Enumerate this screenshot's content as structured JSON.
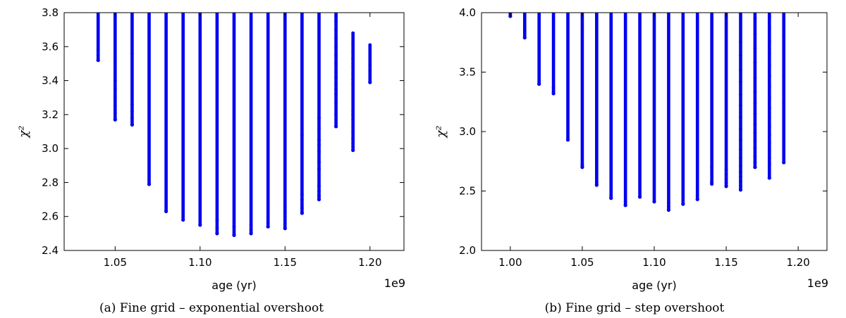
{
  "chart_data": [
    {
      "type": "scatter",
      "panel": "a",
      "caption": "(a) Fine grid – exponential overshoot",
      "xlabel": "age (yr)",
      "ylabel": "χ²",
      "x_offset_text": "1e9",
      "xlim": [
        1.02,
        1.22
      ],
      "ylim": [
        2.4,
        3.8
      ],
      "xticks": [
        "1.05",
        "1.10",
        "1.15",
        "1.20"
      ],
      "yticks": [
        "2.4",
        "2.6",
        "2.8",
        "3.0",
        "3.2",
        "3.4",
        "3.6",
        "3.8"
      ],
      "color": "#0000ee",
      "columns": [
        {
          "x": 1.04,
          "ymin": 3.52,
          "ymax": 3.8
        },
        {
          "x": 1.05,
          "ymin": 3.17,
          "ymax": 3.8
        },
        {
          "x": 1.06,
          "ymin": 3.14,
          "ymax": 3.8
        },
        {
          "x": 1.07,
          "ymin": 2.79,
          "ymax": 3.8
        },
        {
          "x": 1.08,
          "ymin": 2.63,
          "ymax": 3.8
        },
        {
          "x": 1.09,
          "ymin": 2.58,
          "ymax": 3.8
        },
        {
          "x": 1.1,
          "ymin": 2.55,
          "ymax": 3.8
        },
        {
          "x": 1.11,
          "ymin": 2.5,
          "ymax": 3.8
        },
        {
          "x": 1.12,
          "ymin": 2.49,
          "ymax": 3.8
        },
        {
          "x": 1.13,
          "ymin": 2.5,
          "ymax": 3.8
        },
        {
          "x": 1.14,
          "ymin": 2.54,
          "ymax": 3.8
        },
        {
          "x": 1.15,
          "ymin": 2.53,
          "ymax": 3.8
        },
        {
          "x": 1.16,
          "ymin": 2.62,
          "ymax": 3.8
        },
        {
          "x": 1.17,
          "ymin": 2.7,
          "ymax": 3.8
        },
        {
          "x": 1.18,
          "ymin": 3.13,
          "ymax": 3.8
        },
        {
          "x": 1.19,
          "ymin": 2.99,
          "ymax": 3.68
        },
        {
          "x": 1.2,
          "ymin": 3.39,
          "ymax": 3.61
        }
      ],
      "scatter_points": [
        {
          "x": 1.04,
          "y": 3.52
        },
        {
          "x": 1.04,
          "y": 3.55
        },
        {
          "x": 1.04,
          "y": 3.58
        },
        {
          "x": 1.05,
          "y": 3.17
        },
        {
          "x": 1.05,
          "y": 3.21
        },
        {
          "x": 1.05,
          "y": 3.25
        },
        {
          "x": 1.05,
          "y": 3.3
        },
        {
          "x": 1.05,
          "y": 3.35
        },
        {
          "x": 1.05,
          "y": 3.4
        },
        {
          "x": 1.05,
          "y": 3.45
        },
        {
          "x": 1.05,
          "y": 3.51
        },
        {
          "x": 1.06,
          "y": 3.14
        },
        {
          "x": 1.06,
          "y": 3.18
        },
        {
          "x": 1.06,
          "y": 3.22
        },
        {
          "x": 1.06,
          "y": 3.26
        },
        {
          "x": 1.06,
          "y": 3.56
        },
        {
          "x": 1.11,
          "y": 2.5
        },
        {
          "x": 1.11,
          "y": 2.53
        },
        {
          "x": 1.11,
          "y": 2.58
        },
        {
          "x": 1.12,
          "y": 2.49
        },
        {
          "x": 1.12,
          "y": 2.54
        },
        {
          "x": 1.13,
          "y": 2.5
        },
        {
          "x": 1.13,
          "y": 2.52
        },
        {
          "x": 1.13,
          "y": 2.55
        },
        {
          "x": 1.14,
          "y": 2.54
        },
        {
          "x": 1.14,
          "y": 2.56
        },
        {
          "x": 1.15,
          "y": 2.53
        },
        {
          "x": 1.15,
          "y": 2.56
        },
        {
          "x": 1.15,
          "y": 2.6
        },
        {
          "x": 1.15,
          "y": 2.63
        },
        {
          "x": 1.15,
          "y": 2.66
        },
        {
          "x": 1.16,
          "y": 2.62
        },
        {
          "x": 1.16,
          "y": 2.65
        },
        {
          "x": 1.16,
          "y": 2.7
        },
        {
          "x": 1.16,
          "y": 2.73
        },
        {
          "x": 1.16,
          "y": 3.08
        },
        {
          "x": 1.17,
          "y": 2.7
        },
        {
          "x": 1.17,
          "y": 2.72
        },
        {
          "x": 1.17,
          "y": 2.75
        },
        {
          "x": 1.17,
          "y": 2.78
        },
        {
          "x": 1.17,
          "y": 2.88
        },
        {
          "x": 1.17,
          "y": 2.92
        },
        {
          "x": 1.17,
          "y": 2.98
        },
        {
          "x": 1.17,
          "y": 3.02
        },
        {
          "x": 1.17,
          "y": 3.05
        },
        {
          "x": 1.17,
          "y": 3.12
        },
        {
          "x": 1.17,
          "y": 3.18
        },
        {
          "x": 1.18,
          "y": 3.13
        },
        {
          "x": 1.18,
          "y": 3.2
        },
        {
          "x": 1.18,
          "y": 3.27
        },
        {
          "x": 1.18,
          "y": 3.32
        },
        {
          "x": 1.18,
          "y": 3.35
        },
        {
          "x": 1.18,
          "y": 3.38
        },
        {
          "x": 1.18,
          "y": 3.42
        },
        {
          "x": 1.18,
          "y": 3.45
        },
        {
          "x": 1.18,
          "y": 3.5
        },
        {
          "x": 1.18,
          "y": 3.55
        },
        {
          "x": 1.18,
          "y": 3.6
        },
        {
          "x": 1.18,
          "y": 3.65
        },
        {
          "x": 1.18,
          "y": 3.7
        },
        {
          "x": 1.18,
          "y": 3.75
        },
        {
          "x": 1.18,
          "y": 3.78
        },
        {
          "x": 1.19,
          "y": 2.99
        },
        {
          "x": 1.19,
          "y": 3.01
        },
        {
          "x": 1.19,
          "y": 3.03
        },
        {
          "x": 1.19,
          "y": 3.06
        },
        {
          "x": 1.19,
          "y": 3.1
        },
        {
          "x": 1.19,
          "y": 3.13
        },
        {
          "x": 1.19,
          "y": 3.17
        },
        {
          "x": 1.19,
          "y": 3.2
        },
        {
          "x": 1.19,
          "y": 3.22
        },
        {
          "x": 1.19,
          "y": 3.38
        },
        {
          "x": 1.19,
          "y": 3.41
        },
        {
          "x": 1.19,
          "y": 3.44
        },
        {
          "x": 1.19,
          "y": 3.48
        },
        {
          "x": 1.19,
          "y": 3.5
        },
        {
          "x": 1.19,
          "y": 3.53
        },
        {
          "x": 1.19,
          "y": 3.57
        },
        {
          "x": 1.19,
          "y": 3.62
        },
        {
          "x": 1.19,
          "y": 3.68
        },
        {
          "x": 1.2,
          "y": 3.39
        },
        {
          "x": 1.2,
          "y": 3.46
        },
        {
          "x": 1.2,
          "y": 3.49
        },
        {
          "x": 1.2,
          "y": 3.61
        }
      ]
    },
    {
      "type": "scatter",
      "panel": "b",
      "caption": "(b) Fine grid – step overshoot",
      "xlabel": "age (yr)",
      "ylabel": "χ²",
      "x_offset_text": "1e9",
      "xlim": [
        0.98,
        1.22
      ],
      "ylim": [
        2.0,
        4.0
      ],
      "xticks": [
        "1.00",
        "1.05",
        "1.10",
        "1.15",
        "1.20"
      ],
      "yticks": [
        "2.0",
        "2.5",
        "3.0",
        "3.5",
        "4.0"
      ],
      "color": "#0000ee",
      "columns": [
        {
          "x": 1.0,
          "ymin": 3.97,
          "ymax": 4.0
        },
        {
          "x": 1.01,
          "ymin": 3.79,
          "ymax": 4.0
        },
        {
          "x": 1.02,
          "ymin": 3.4,
          "ymax": 4.0
        },
        {
          "x": 1.03,
          "ymin": 3.32,
          "ymax": 4.0
        },
        {
          "x": 1.04,
          "ymin": 2.93,
          "ymax": 4.0
        },
        {
          "x": 1.05,
          "ymin": 2.7,
          "ymax": 4.0
        },
        {
          "x": 1.06,
          "ymin": 2.55,
          "ymax": 4.0
        },
        {
          "x": 1.07,
          "ymin": 2.44,
          "ymax": 4.0
        },
        {
          "x": 1.08,
          "ymin": 2.38,
          "ymax": 4.0
        },
        {
          "x": 1.09,
          "ymin": 2.45,
          "ymax": 4.0
        },
        {
          "x": 1.1,
          "ymin": 2.41,
          "ymax": 4.0
        },
        {
          "x": 1.11,
          "ymin": 2.34,
          "ymax": 4.0
        },
        {
          "x": 1.12,
          "ymin": 2.39,
          "ymax": 4.0
        },
        {
          "x": 1.13,
          "ymin": 2.43,
          "ymax": 4.0
        },
        {
          "x": 1.14,
          "ymin": 2.56,
          "ymax": 4.0
        },
        {
          "x": 1.15,
          "ymin": 2.54,
          "ymax": 4.0
        },
        {
          "x": 1.16,
          "ymin": 2.51,
          "ymax": 4.0
        },
        {
          "x": 1.17,
          "ymin": 2.7,
          "ymax": 4.0
        },
        {
          "x": 1.18,
          "ymin": 2.61,
          "ymax": 4.0
        },
        {
          "x": 1.19,
          "ymin": 2.74,
          "ymax": 4.0
        }
      ],
      "scatter_points": [
        {
          "x": 1.0,
          "y": 3.97
        },
        {
          "x": 1.0,
          "y": 3.99
        },
        {
          "x": 1.01,
          "y": 3.79
        },
        {
          "x": 1.01,
          "y": 3.85
        },
        {
          "x": 1.02,
          "y": 3.4
        },
        {
          "x": 1.02,
          "y": 3.42
        },
        {
          "x": 1.03,
          "y": 3.32
        },
        {
          "x": 1.03,
          "y": 3.34
        },
        {
          "x": 1.03,
          "y": 3.37
        },
        {
          "x": 1.05,
          "y": 2.7
        },
        {
          "x": 1.05,
          "y": 2.72
        },
        {
          "x": 1.06,
          "y": 2.55
        },
        {
          "x": 1.06,
          "y": 2.57
        },
        {
          "x": 1.07,
          "y": 2.44
        },
        {
          "x": 1.07,
          "y": 2.46
        },
        {
          "x": 1.08,
          "y": 2.38
        },
        {
          "x": 1.08,
          "y": 2.41
        },
        {
          "x": 1.11,
          "y": 2.34
        },
        {
          "x": 1.11,
          "y": 2.37
        },
        {
          "x": 1.11,
          "y": 2.4
        },
        {
          "x": 1.12,
          "y": 2.39
        },
        {
          "x": 1.13,
          "y": 2.43
        },
        {
          "x": 1.13,
          "y": 2.46
        },
        {
          "x": 1.13,
          "y": 2.52
        },
        {
          "x": 1.14,
          "y": 2.56
        },
        {
          "x": 1.14,
          "y": 2.58
        },
        {
          "x": 1.14,
          "y": 2.7
        },
        {
          "x": 1.15,
          "y": 2.54
        },
        {
          "x": 1.15,
          "y": 2.57
        },
        {
          "x": 1.15,
          "y": 2.6
        },
        {
          "x": 1.15,
          "y": 2.64
        },
        {
          "x": 1.15,
          "y": 2.68
        },
        {
          "x": 1.16,
          "y": 2.51
        },
        {
          "x": 1.16,
          "y": 2.54
        },
        {
          "x": 1.16,
          "y": 2.58
        },
        {
          "x": 1.16,
          "y": 2.62
        },
        {
          "x": 1.16,
          "y": 2.66
        },
        {
          "x": 1.16,
          "y": 2.71
        },
        {
          "x": 1.16,
          "y": 2.78
        },
        {
          "x": 1.16,
          "y": 2.85
        },
        {
          "x": 1.16,
          "y": 2.93
        },
        {
          "x": 1.16,
          "y": 3.02
        },
        {
          "x": 1.16,
          "y": 3.12
        },
        {
          "x": 1.16,
          "y": 3.22
        },
        {
          "x": 1.16,
          "y": 3.31
        },
        {
          "x": 1.16,
          "y": 3.42
        },
        {
          "x": 1.16,
          "y": 3.52
        },
        {
          "x": 1.16,
          "y": 3.64
        },
        {
          "x": 1.16,
          "y": 3.75
        },
        {
          "x": 1.17,
          "y": 2.7
        },
        {
          "x": 1.17,
          "y": 2.74
        },
        {
          "x": 1.17,
          "y": 2.79
        },
        {
          "x": 1.17,
          "y": 2.86
        },
        {
          "x": 1.17,
          "y": 2.92
        },
        {
          "x": 1.17,
          "y": 2.99
        },
        {
          "x": 1.17,
          "y": 3.06
        },
        {
          "x": 1.17,
          "y": 3.15
        },
        {
          "x": 1.17,
          "y": 3.24
        },
        {
          "x": 1.17,
          "y": 3.33
        },
        {
          "x": 1.17,
          "y": 3.45
        },
        {
          "x": 1.17,
          "y": 3.58
        },
        {
          "x": 1.17,
          "y": 3.7
        },
        {
          "x": 1.17,
          "y": 3.82
        },
        {
          "x": 1.17,
          "y": 3.95
        },
        {
          "x": 1.18,
          "y": 2.61
        },
        {
          "x": 1.18,
          "y": 2.73
        },
        {
          "x": 1.18,
          "y": 2.78
        },
        {
          "x": 1.18,
          "y": 2.84
        },
        {
          "x": 1.18,
          "y": 2.9
        },
        {
          "x": 1.18,
          "y": 2.97
        },
        {
          "x": 1.18,
          "y": 3.04
        },
        {
          "x": 1.18,
          "y": 3.12
        },
        {
          "x": 1.18,
          "y": 3.2
        },
        {
          "x": 1.18,
          "y": 3.29
        },
        {
          "x": 1.18,
          "y": 3.38
        },
        {
          "x": 1.18,
          "y": 3.47
        },
        {
          "x": 1.18,
          "y": 3.56
        },
        {
          "x": 1.18,
          "y": 3.66
        },
        {
          "x": 1.18,
          "y": 3.76
        },
        {
          "x": 1.18,
          "y": 3.87
        },
        {
          "x": 1.18,
          "y": 3.97
        },
        {
          "x": 1.19,
          "y": 2.74
        },
        {
          "x": 1.19,
          "y": 2.85
        },
        {
          "x": 1.19,
          "y": 2.92
        },
        {
          "x": 1.19,
          "y": 2.98
        },
        {
          "x": 1.19,
          "y": 3.05
        },
        {
          "x": 1.19,
          "y": 3.12
        },
        {
          "x": 1.19,
          "y": 3.18
        },
        {
          "x": 1.19,
          "y": 3.24
        },
        {
          "x": 1.19,
          "y": 3.31
        },
        {
          "x": 1.19,
          "y": 3.4
        },
        {
          "x": 1.19,
          "y": 3.47
        },
        {
          "x": 1.19,
          "y": 3.55
        },
        {
          "x": 1.19,
          "y": 3.65
        },
        {
          "x": 1.19,
          "y": 3.72
        },
        {
          "x": 1.19,
          "y": 3.8
        },
        {
          "x": 1.19,
          "y": 3.88
        },
        {
          "x": 1.19,
          "y": 3.96
        }
      ]
    }
  ]
}
